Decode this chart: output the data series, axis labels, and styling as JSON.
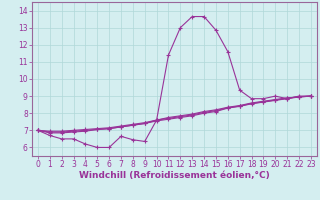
{
  "xlabel": "Windchill (Refroidissement éolien,°C)",
  "background_color": "#d4eef0",
  "line_color": "#993399",
  "xlim": [
    -0.5,
    23.5
  ],
  "ylim": [
    5.5,
    14.5
  ],
  "yticks": [
    6,
    7,
    8,
    9,
    10,
    11,
    12,
    13,
    14
  ],
  "xticks": [
    0,
    1,
    2,
    3,
    4,
    5,
    6,
    7,
    8,
    9,
    10,
    11,
    12,
    13,
    14,
    15,
    16,
    17,
    18,
    19,
    20,
    21,
    22,
    23
  ],
  "series": [
    [
      7.0,
      6.7,
      6.5,
      6.5,
      6.2,
      6.0,
      6.0,
      6.65,
      6.45,
      6.35,
      7.6,
      11.4,
      13.0,
      13.65,
      13.65,
      12.85,
      11.6,
      9.35,
      8.85,
      8.85,
      9.0,
      8.85,
      9.0,
      9.0
    ],
    [
      7.0,
      6.85,
      6.85,
      6.9,
      6.95,
      7.05,
      7.1,
      7.2,
      7.3,
      7.4,
      7.6,
      7.75,
      7.85,
      7.95,
      8.1,
      8.2,
      8.35,
      8.45,
      8.6,
      8.7,
      8.8,
      8.9,
      8.95,
      9.0
    ],
    [
      7.0,
      6.9,
      6.9,
      6.95,
      7.0,
      7.05,
      7.1,
      7.2,
      7.3,
      7.4,
      7.55,
      7.65,
      7.75,
      7.85,
      8.0,
      8.1,
      8.3,
      8.4,
      8.55,
      8.65,
      8.75,
      8.85,
      8.95,
      9.0
    ],
    [
      7.0,
      6.95,
      6.95,
      7.0,
      7.05,
      7.1,
      7.15,
      7.25,
      7.35,
      7.45,
      7.6,
      7.7,
      7.8,
      7.9,
      8.05,
      8.15,
      8.32,
      8.42,
      8.57,
      8.67,
      8.77,
      8.87,
      8.97,
      9.0
    ]
  ],
  "marker": "+",
  "markersize": 3,
  "linewidth": 0.8,
  "grid_color": "#b0d8d8",
  "tick_fontsize": 5.5,
  "xlabel_fontsize": 6.5,
  "spine_color": "#996699"
}
